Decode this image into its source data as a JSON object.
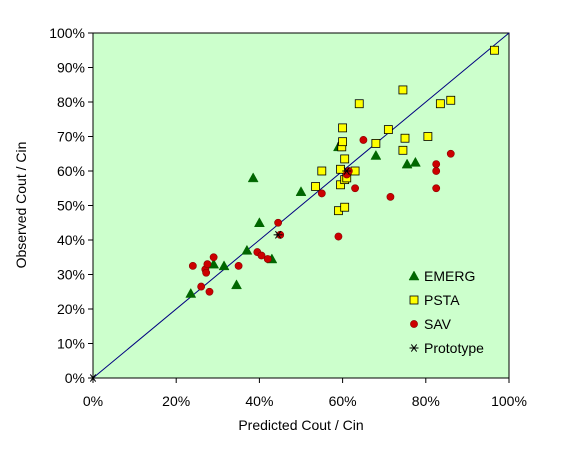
{
  "chart_data": {
    "type": "scatter",
    "xlabel": "Predicted Cout / Cin",
    "ylabel": "Observed Cout / Cin",
    "xlim": [
      0,
      1
    ],
    "ylim": [
      0,
      1
    ],
    "x_ticks": [
      "0%",
      "20%",
      "40%",
      "60%",
      "80%",
      "100%"
    ],
    "y_ticks": [
      "0%",
      "10%",
      "20%",
      "30%",
      "40%",
      "50%",
      "60%",
      "70%",
      "80%",
      "90%",
      "100%"
    ],
    "plot_background": "#ccffcc",
    "reference_line": {
      "from": [
        0,
        0
      ],
      "to": [
        1,
        1
      ],
      "color": "#000080"
    },
    "legend_position": "bottom-right",
    "series": [
      {
        "name": "EMERG",
        "marker": "triangle",
        "color": "#006600",
        "points": [
          [
            0.235,
            0.245
          ],
          [
            0.29,
            0.33
          ],
          [
            0.315,
            0.325
          ],
          [
            0.345,
            0.27
          ],
          [
            0.37,
            0.37
          ],
          [
            0.385,
            0.58
          ],
          [
            0.4,
            0.45
          ],
          [
            0.43,
            0.345
          ],
          [
            0.5,
            0.54
          ],
          [
            0.59,
            0.67
          ],
          [
            0.68,
            0.645
          ],
          [
            0.755,
            0.62
          ],
          [
            0.775,
            0.625
          ]
        ]
      },
      {
        "name": "PSTA",
        "marker": "square",
        "color": "#ffff00",
        "points": [
          [
            0.535,
            0.555
          ],
          [
            0.55,
            0.6
          ],
          [
            0.59,
            0.485
          ],
          [
            0.595,
            0.56
          ],
          [
            0.595,
            0.605
          ],
          [
            0.598,
            0.67
          ],
          [
            0.6,
            0.685
          ],
          [
            0.6,
            0.725
          ],
          [
            0.605,
            0.635
          ],
          [
            0.605,
            0.575
          ],
          [
            0.605,
            0.495
          ],
          [
            0.61,
            0.58
          ],
          [
            0.63,
            0.6
          ],
          [
            0.64,
            0.795
          ],
          [
            0.68,
            0.68
          ],
          [
            0.71,
            0.72
          ],
          [
            0.745,
            0.835
          ],
          [
            0.745,
            0.66
          ],
          [
            0.75,
            0.695
          ],
          [
            0.805,
            0.7
          ],
          [
            0.835,
            0.795
          ],
          [
            0.86,
            0.805
          ],
          [
            0.965,
            0.95
          ]
        ]
      },
      {
        "name": "SAV",
        "marker": "circle",
        "color": "#cc0000",
        "points": [
          [
            0.24,
            0.325
          ],
          [
            0.26,
            0.265
          ],
          [
            0.27,
            0.315
          ],
          [
            0.272,
            0.305
          ],
          [
            0.275,
            0.33
          ],
          [
            0.28,
            0.25
          ],
          [
            0.29,
            0.35
          ],
          [
            0.35,
            0.325
          ],
          [
            0.395,
            0.365
          ],
          [
            0.405,
            0.355
          ],
          [
            0.42,
            0.345
          ],
          [
            0.445,
            0.45
          ],
          [
            0.45,
            0.415
          ],
          [
            0.55,
            0.535
          ],
          [
            0.59,
            0.41
          ],
          [
            0.61,
            0.59
          ],
          [
            0.615,
            0.6
          ],
          [
            0.63,
            0.55
          ],
          [
            0.65,
            0.69
          ],
          [
            0.715,
            0.525
          ],
          [
            0.825,
            0.62
          ],
          [
            0.825,
            0.6
          ],
          [
            0.825,
            0.55
          ],
          [
            0.86,
            0.65
          ]
        ]
      },
      {
        "name": "Prototype",
        "marker": "asterisk",
        "color": "#000000",
        "points": [
          [
            0.0,
            0.0
          ],
          [
            0.445,
            0.415
          ],
          [
            0.61,
            0.6
          ]
        ]
      }
    ]
  }
}
